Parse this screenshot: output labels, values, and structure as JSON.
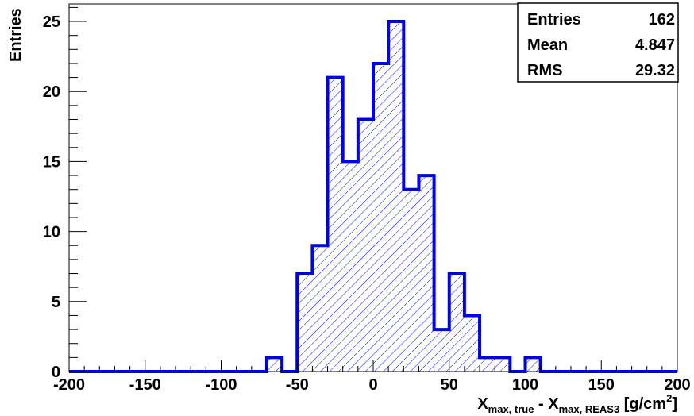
{
  "chart_data": {
    "type": "bar",
    "title": "",
    "ylabel": "Entries",
    "xlabel": {
      "main": "X",
      "sub1": "max, true",
      "mid": " - X",
      "sub2": "max, REAS3",
      "unit": " [g/cm",
      "sup": "2",
      "close": "]"
    },
    "xlim": [
      -200,
      200
    ],
    "ylim": [
      0,
      26.25
    ],
    "bin_width": 10,
    "bin_edges_start": -200,
    "values": [
      0,
      0,
      0,
      0,
      0,
      0,
      0,
      0,
      0,
      0,
      0,
      0,
      0,
      1,
      0,
      7,
      9,
      21,
      15,
      18,
      22,
      25,
      13,
      14,
      3,
      7,
      4,
      1,
      1,
      0,
      1,
      0,
      0,
      0,
      0,
      0,
      0,
      0,
      0,
      0
    ],
    "x_ticks": [
      -200,
      -150,
      -100,
      -50,
      0,
      50,
      100,
      150,
      200
    ],
    "y_ticks": [
      0,
      5,
      10,
      15,
      20,
      25
    ],
    "fill_style": "diagonal-hatch",
    "line_color": "#0000ee",
    "grid": false,
    "stats": {
      "rows": [
        {
          "label": "Entries",
          "value": "162"
        },
        {
          "label": "Mean",
          "value": "4.847"
        },
        {
          "label": "RMS",
          "value": "29.32"
        }
      ],
      "placement": "top-right"
    }
  }
}
